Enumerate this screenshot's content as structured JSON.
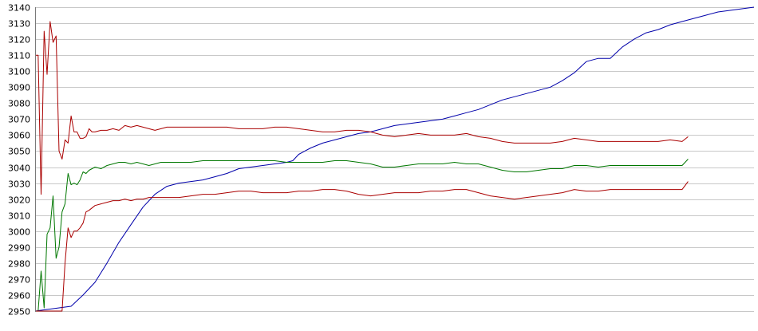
{
  "chart_data": {
    "type": "line",
    "ylim": [
      2950,
      3140
    ],
    "ytick_step": 10,
    "grid": "horizontal",
    "legend": "none",
    "x_count": 171,
    "series": [
      {
        "color": "#0000aa",
        "points": [
          [
            0,
            2950
          ],
          [
            4,
            2951
          ],
          [
            8,
            2952
          ],
          [
            12,
            2953
          ],
          [
            16,
            2960
          ],
          [
            20,
            2968
          ],
          [
            24,
            2980
          ],
          [
            28,
            2993
          ],
          [
            32,
            3004
          ],
          [
            36,
            3015
          ],
          [
            40,
            3023
          ],
          [
            44,
            3028
          ],
          [
            48,
            3030
          ],
          [
            52,
            3031
          ],
          [
            56,
            3032
          ],
          [
            60,
            3034
          ],
          [
            64,
            3036
          ],
          [
            68,
            3039
          ],
          [
            72,
            3040
          ],
          [
            76,
            3041
          ],
          [
            80,
            3042
          ],
          [
            84,
            3043
          ],
          [
            86,
            3044
          ],
          [
            88,
            3048
          ],
          [
            92,
            3052
          ],
          [
            96,
            3055
          ],
          [
            100,
            3057
          ],
          [
            104,
            3059
          ],
          [
            108,
            3061
          ],
          [
            112,
            3062
          ],
          [
            116,
            3064
          ],
          [
            120,
            3066
          ],
          [
            124,
            3067
          ],
          [
            128,
            3068
          ],
          [
            132,
            3069
          ],
          [
            136,
            3070
          ],
          [
            140,
            3072
          ],
          [
            144,
            3074
          ],
          [
            148,
            3076
          ],
          [
            152,
            3079
          ],
          [
            156,
            3082
          ],
          [
            160,
            3084
          ],
          [
            164,
            3086
          ],
          [
            168,
            3088
          ],
          [
            172,
            3090
          ],
          [
            176,
            3094
          ],
          [
            180,
            3099
          ],
          [
            184,
            3106
          ],
          [
            188,
            3108
          ],
          [
            192,
            3108
          ],
          [
            196,
            3115
          ],
          [
            200,
            3120
          ],
          [
            204,
            3124
          ],
          [
            208,
            3126
          ],
          [
            212,
            3129
          ],
          [
            216,
            3131
          ],
          [
            220,
            3133
          ],
          [
            224,
            3135
          ],
          [
            228,
            3137
          ],
          [
            232,
            3138
          ],
          [
            236,
            3139
          ],
          [
            240,
            3140
          ]
        ]
      },
      {
        "color": "#aa0000",
        "points": [
          [
            0,
            3110
          ],
          [
            1,
            3110
          ],
          [
            2,
            3023
          ],
          [
            3,
            3125
          ],
          [
            4,
            3098
          ],
          [
            5,
            3131
          ],
          [
            6,
            3118
          ],
          [
            7,
            3122
          ],
          [
            8,
            3050
          ],
          [
            9,
            3045
          ],
          [
            10,
            3057
          ],
          [
            11,
            3055
          ],
          [
            12,
            3072
          ],
          [
            13,
            3062
          ],
          [
            14,
            3062
          ],
          [
            15,
            3058
          ],
          [
            16,
            3058
          ],
          [
            17,
            3059
          ],
          [
            18,
            3064
          ],
          [
            19,
            3062
          ],
          [
            20,
            3062
          ],
          [
            22,
            3063
          ],
          [
            24,
            3063
          ],
          [
            26,
            3064
          ],
          [
            28,
            3063
          ],
          [
            30,
            3066
          ],
          [
            32,
            3065
          ],
          [
            34,
            3066
          ],
          [
            36,
            3065
          ],
          [
            38,
            3064
          ],
          [
            40,
            3063
          ],
          [
            42,
            3064
          ],
          [
            44,
            3065
          ],
          [
            48,
            3065
          ],
          [
            52,
            3065
          ],
          [
            56,
            3065
          ],
          [
            60,
            3065
          ],
          [
            64,
            3065
          ],
          [
            68,
            3064
          ],
          [
            72,
            3064
          ],
          [
            76,
            3064
          ],
          [
            80,
            3065
          ],
          [
            84,
            3065
          ],
          [
            88,
            3064
          ],
          [
            92,
            3063
          ],
          [
            96,
            3062
          ],
          [
            100,
            3062
          ],
          [
            104,
            3063
          ],
          [
            108,
            3063
          ],
          [
            112,
            3062
          ],
          [
            116,
            3060
          ],
          [
            120,
            3059
          ],
          [
            124,
            3060
          ],
          [
            128,
            3061
          ],
          [
            132,
            3060
          ],
          [
            136,
            3060
          ],
          [
            140,
            3060
          ],
          [
            144,
            3061
          ],
          [
            148,
            3059
          ],
          [
            152,
            3058
          ],
          [
            156,
            3056
          ],
          [
            160,
            3055
          ],
          [
            164,
            3055
          ],
          [
            168,
            3055
          ],
          [
            172,
            3055
          ],
          [
            176,
            3056
          ],
          [
            180,
            3058
          ],
          [
            184,
            3057
          ],
          [
            188,
            3056
          ],
          [
            192,
            3056
          ],
          [
            196,
            3056
          ],
          [
            200,
            3056
          ],
          [
            204,
            3056
          ],
          [
            208,
            3056
          ],
          [
            212,
            3057
          ],
          [
            216,
            3056
          ],
          [
            218,
            3059
          ]
        ]
      },
      {
        "color": "#007700",
        "points": [
          [
            0,
            2950
          ],
          [
            1,
            2950
          ],
          [
            2,
            2975
          ],
          [
            3,
            2952
          ],
          [
            4,
            2998
          ],
          [
            5,
            3002
          ],
          [
            6,
            3022
          ],
          [
            7,
            2983
          ],
          [
            8,
            2990
          ],
          [
            9,
            3012
          ],
          [
            10,
            3017
          ],
          [
            11,
            3036
          ],
          [
            12,
            3029
          ],
          [
            13,
            3030
          ],
          [
            14,
            3029
          ],
          [
            15,
            3032
          ],
          [
            16,
            3037
          ],
          [
            17,
            3036
          ],
          [
            18,
            3038
          ],
          [
            20,
            3040
          ],
          [
            22,
            3039
          ],
          [
            24,
            3041
          ],
          [
            26,
            3042
          ],
          [
            28,
            3043
          ],
          [
            30,
            3043
          ],
          [
            32,
            3042
          ],
          [
            34,
            3043
          ],
          [
            36,
            3042
          ],
          [
            38,
            3041
          ],
          [
            40,
            3042
          ],
          [
            42,
            3043
          ],
          [
            44,
            3043
          ],
          [
            48,
            3043
          ],
          [
            52,
            3043
          ],
          [
            56,
            3044
          ],
          [
            60,
            3044
          ],
          [
            64,
            3044
          ],
          [
            68,
            3044
          ],
          [
            72,
            3044
          ],
          [
            76,
            3044
          ],
          [
            80,
            3044
          ],
          [
            84,
            3043
          ],
          [
            88,
            3043
          ],
          [
            92,
            3043
          ],
          [
            96,
            3043
          ],
          [
            100,
            3044
          ],
          [
            104,
            3044
          ],
          [
            108,
            3043
          ],
          [
            112,
            3042
          ],
          [
            116,
            3040
          ],
          [
            120,
            3040
          ],
          [
            124,
            3041
          ],
          [
            128,
            3042
          ],
          [
            132,
            3042
          ],
          [
            136,
            3042
          ],
          [
            140,
            3043
          ],
          [
            144,
            3042
          ],
          [
            148,
            3042
          ],
          [
            152,
            3040
          ],
          [
            156,
            3038
          ],
          [
            160,
            3037
          ],
          [
            164,
            3037
          ],
          [
            168,
            3038
          ],
          [
            172,
            3039
          ],
          [
            176,
            3039
          ],
          [
            180,
            3041
          ],
          [
            184,
            3041
          ],
          [
            188,
            3040
          ],
          [
            192,
            3041
          ],
          [
            196,
            3041
          ],
          [
            200,
            3041
          ],
          [
            204,
            3041
          ],
          [
            208,
            3041
          ],
          [
            212,
            3041
          ],
          [
            216,
            3041
          ],
          [
            218,
            3045
          ]
        ]
      },
      {
        "color": "#aa0000",
        "points": [
          [
            0,
            2950
          ],
          [
            2,
            2950
          ],
          [
            4,
            2950
          ],
          [
            6,
            2950
          ],
          [
            8,
            2950
          ],
          [
            9,
            2950
          ],
          [
            10,
            2980
          ],
          [
            11,
            3002
          ],
          [
            12,
            2996
          ],
          [
            13,
            3000
          ],
          [
            14,
            3000
          ],
          [
            15,
            3002
          ],
          [
            16,
            3005
          ],
          [
            17,
            3012
          ],
          [
            18,
            3013
          ],
          [
            20,
            3016
          ],
          [
            22,
            3017
          ],
          [
            24,
            3018
          ],
          [
            26,
            3019
          ],
          [
            28,
            3019
          ],
          [
            30,
            3020
          ],
          [
            32,
            3019
          ],
          [
            34,
            3020
          ],
          [
            36,
            3020
          ],
          [
            38,
            3021
          ],
          [
            40,
            3021
          ],
          [
            44,
            3021
          ],
          [
            48,
            3021
          ],
          [
            52,
            3022
          ],
          [
            56,
            3023
          ],
          [
            60,
            3023
          ],
          [
            64,
            3024
          ],
          [
            68,
            3025
          ],
          [
            72,
            3025
          ],
          [
            76,
            3024
          ],
          [
            80,
            3024
          ],
          [
            84,
            3024
          ],
          [
            88,
            3025
          ],
          [
            92,
            3025
          ],
          [
            96,
            3026
          ],
          [
            100,
            3026
          ],
          [
            104,
            3025
          ],
          [
            108,
            3023
          ],
          [
            112,
            3022
          ],
          [
            116,
            3023
          ],
          [
            120,
            3024
          ],
          [
            124,
            3024
          ],
          [
            128,
            3024
          ],
          [
            132,
            3025
          ],
          [
            136,
            3025
          ],
          [
            140,
            3026
          ],
          [
            144,
            3026
          ],
          [
            148,
            3024
          ],
          [
            152,
            3022
          ],
          [
            156,
            3021
          ],
          [
            160,
            3020
          ],
          [
            164,
            3021
          ],
          [
            168,
            3022
          ],
          [
            172,
            3023
          ],
          [
            176,
            3024
          ],
          [
            180,
            3026
          ],
          [
            184,
            3025
          ],
          [
            188,
            3025
          ],
          [
            192,
            3026
          ],
          [
            196,
            3026
          ],
          [
            200,
            3026
          ],
          [
            204,
            3026
          ],
          [
            208,
            3026
          ],
          [
            212,
            3026
          ],
          [
            216,
            3026
          ],
          [
            218,
            3031
          ]
        ]
      }
    ]
  }
}
